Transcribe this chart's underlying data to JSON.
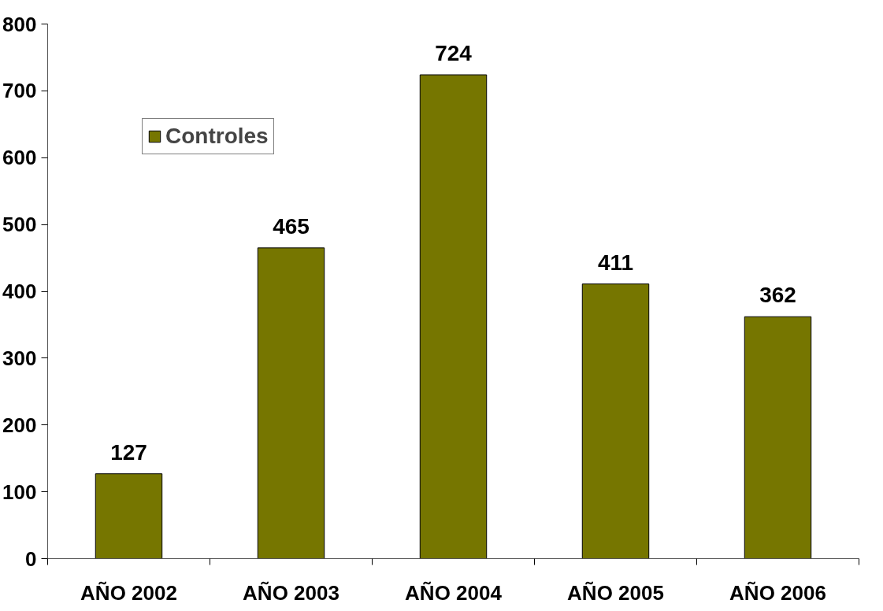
{
  "chart_data": {
    "type": "bar",
    "categories": [
      "AÑO 2002",
      "AÑO 2003",
      "AÑO 2004",
      "AÑO 2005",
      "AÑO 2006"
    ],
    "series": [
      {
        "name": "Controles",
        "color": "#767600",
        "values": [
          127,
          465,
          724,
          411,
          362
        ]
      }
    ],
    "ylim": [
      0,
      800
    ],
    "yticks": [
      0,
      100,
      200,
      300,
      400,
      500,
      600,
      700,
      800
    ],
    "data_labels": true,
    "grid": false,
    "legend": "top left"
  }
}
